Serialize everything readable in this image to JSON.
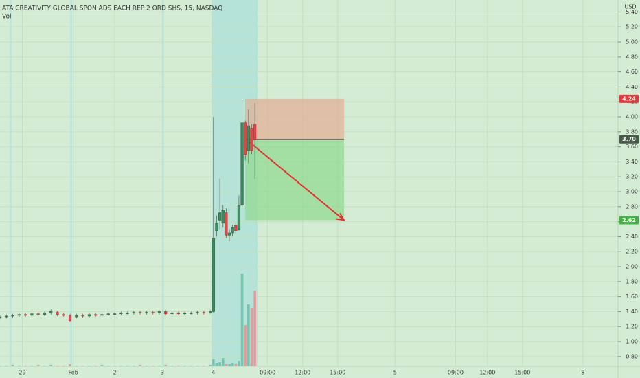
{
  "chart_data": {
    "type": "candlestick",
    "title": "ATA CREATIVITY GLOBAL SPON ADS EACH REP 2 ORD SHS, 15, NASDAQ",
    "volume_label": "Vol",
    "currency": "USD",
    "up_color": "#3b8f5e",
    "down_color": "#e04848",
    "x": [
      0,
      2,
      4,
      6,
      8,
      10,
      12,
      14,
      16,
      18,
      20,
      22,
      24,
      26,
      28,
      30,
      32,
      34,
      36,
      38,
      40,
      42,
      44,
      46,
      48,
      50,
      52,
      54,
      56,
      58,
      60,
      62,
      64,
      66,
      67,
      68,
      69,
      70,
      71,
      72,
      73,
      74,
      75,
      76,
      77,
      78,
      79,
      80
    ],
    "open": [
      1.32,
      1.33,
      1.34,
      1.35,
      1.36,
      1.35,
      1.37,
      1.36,
      1.38,
      1.39,
      1.36,
      1.35,
      1.33,
      1.35,
      1.34,
      1.36,
      1.35,
      1.36,
      1.37,
      1.37,
      1.38,
      1.38,
      1.39,
      1.38,
      1.39,
      1.38,
      1.4,
      1.37,
      1.38,
      1.37,
      1.38,
      1.38,
      1.39,
      1.38,
      1.4,
      2.48,
      2.62,
      2.58,
      2.72,
      2.42,
      2.45,
      2.55,
      2.5,
      2.82,
      3.92,
      3.55,
      3.85,
      3.9
    ],
    "high": [
      1.35,
      1.36,
      1.37,
      1.38,
      1.38,
      1.39,
      1.39,
      1.4,
      1.43,
      1.41,
      1.38,
      1.37,
      1.37,
      1.37,
      1.38,
      1.38,
      1.38,
      1.39,
      1.39,
      1.4,
      1.4,
      1.41,
      1.41,
      1.41,
      1.41,
      1.42,
      1.42,
      1.4,
      1.4,
      1.4,
      1.4,
      1.41,
      1.41,
      1.42,
      4.0,
      2.68,
      3.18,
      2.82,
      2.78,
      2.5,
      2.56,
      2.58,
      2.95,
      4.23,
      3.95,
      4.1,
      3.9,
      4.18
    ],
    "low": [
      1.3,
      1.31,
      1.32,
      1.33,
      1.33,
      1.33,
      1.34,
      1.34,
      1.36,
      1.34,
      1.33,
      1.26,
      1.31,
      1.32,
      1.32,
      1.33,
      1.33,
      1.34,
      1.35,
      1.35,
      1.36,
      1.36,
      1.36,
      1.36,
      1.36,
      1.36,
      1.35,
      1.35,
      1.35,
      1.35,
      1.36,
      1.36,
      1.36,
      1.37,
      1.38,
      2.4,
      2.5,
      2.52,
      2.38,
      2.34,
      2.4,
      2.44,
      2.48,
      2.8,
      3.42,
      3.38,
      3.5,
      3.17
    ],
    "close": [
      1.33,
      1.34,
      1.35,
      1.36,
      1.35,
      1.37,
      1.36,
      1.38,
      1.41,
      1.36,
      1.35,
      1.28,
      1.35,
      1.34,
      1.36,
      1.35,
      1.36,
      1.37,
      1.37,
      1.38,
      1.38,
      1.39,
      1.38,
      1.39,
      1.38,
      1.4,
      1.37,
      1.38,
      1.37,
      1.38,
      1.38,
      1.39,
      1.38,
      1.4,
      2.38,
      2.58,
      2.72,
      2.75,
      2.42,
      2.45,
      2.52,
      2.48,
      2.82,
      3.92,
      3.5,
      3.88,
      3.55,
      3.7
    ],
    "volume": [
      1,
      1,
      2,
      1,
      1,
      1,
      2,
      1,
      2,
      1,
      1,
      3,
      1,
      1,
      1,
      1,
      2,
      1,
      1,
      1,
      1,
      1,
      2,
      1,
      1,
      1,
      2,
      1,
      1,
      1,
      1,
      1,
      1,
      2,
      10,
      5,
      6,
      12,
      4,
      3,
      5,
      4,
      8,
      135,
      60,
      90,
      85,
      110
    ],
    "xlim": [
      0,
      194
    ],
    "xticks": [
      {
        "value": 7,
        "label": "29"
      },
      {
        "value": 23,
        "label": "Feb"
      },
      {
        "value": 36,
        "label": "2"
      },
      {
        "value": 51,
        "label": "3"
      },
      {
        "value": 67,
        "label": "4"
      },
      {
        "value": 84,
        "label": "09:00"
      },
      {
        "value": 95,
        "label": "12:00"
      },
      {
        "value": 106,
        "label": "15:00"
      },
      {
        "value": 124,
        "label": "5"
      },
      {
        "value": 143,
        "label": "09:00"
      },
      {
        "value": 153,
        "label": "12:00"
      },
      {
        "value": 164,
        "label": "15:00"
      },
      {
        "value": 183,
        "label": "8"
      }
    ],
    "ylim": [
      0.67,
      5.56
    ],
    "yticks": [
      {
        "value": 0.8,
        "label": "0.80"
      },
      {
        "value": 1.0,
        "label": "1.00"
      },
      {
        "value": 1.2,
        "label": "1.20"
      },
      {
        "value": 1.4,
        "label": "1.40"
      },
      {
        "value": 1.6,
        "label": "1.60"
      },
      {
        "value": 1.8,
        "label": "1.80"
      },
      {
        "value": 2.0,
        "label": "2.00"
      },
      {
        "value": 2.2,
        "label": "2.20"
      },
      {
        "value": 2.4,
        "label": "2.40"
      },
      {
        "value": 2.6,
        "label": "2.60"
      },
      {
        "value": 2.8,
        "label": "2.80"
      },
      {
        "value": 3.0,
        "label": "3.00"
      },
      {
        "value": 3.2,
        "label": "3.20"
      },
      {
        "value": 3.4,
        "label": "3.40"
      },
      {
        "value": 3.6,
        "label": "3.60"
      },
      {
        "value": 3.8,
        "label": "3.80"
      },
      {
        "value": 4.0,
        "label": "4.00"
      },
      {
        "value": 4.2,
        "label": "4.20"
      },
      {
        "value": 4.4,
        "label": "4.40"
      },
      {
        "value": 4.6,
        "label": "4.60"
      },
      {
        "value": 4.8,
        "label": "4.80"
      },
      {
        "value": 5.0,
        "label": "5.00"
      },
      {
        "value": 5.2,
        "label": "5.20"
      },
      {
        "value": 5.4,
        "label": "5.40"
      }
    ],
    "grid": true,
    "position": {
      "x_start": 77,
      "x_end": 108,
      "stop": {
        "value": 4.24,
        "label": "4.24"
      },
      "entry": {
        "value": 3.7,
        "label": "3.70"
      },
      "target": {
        "value": 2.62,
        "label": "2.62"
      }
    }
  }
}
